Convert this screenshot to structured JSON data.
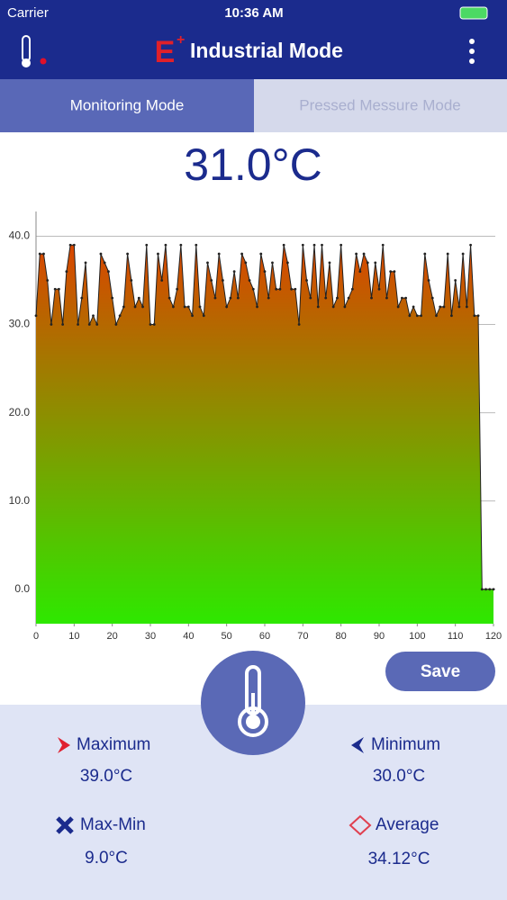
{
  "status_bar": {
    "carrier": "Carrier",
    "time": "10:36 AM"
  },
  "header": {
    "title": "Industrial Mode"
  },
  "tabs": [
    "Monitoring Mode",
    "Pressed Messure Mode"
  ],
  "reading": "31.0°C",
  "chart_data": {
    "type": "area",
    "x": [
      0,
      1,
      2,
      3,
      4,
      5,
      6,
      7,
      8,
      9,
      10,
      11,
      12,
      13,
      14,
      15,
      16,
      17,
      18,
      19,
      20,
      21,
      22,
      23,
      24,
      25,
      26,
      27,
      28,
      29,
      30,
      31,
      32,
      33,
      34,
      35,
      36,
      37,
      38,
      39,
      40,
      41,
      42,
      43,
      44,
      45,
      46,
      47,
      48,
      49,
      50,
      51,
      52,
      53,
      54,
      55,
      56,
      57,
      58,
      59,
      60,
      61,
      62,
      63,
      64,
      65,
      66,
      67,
      68,
      69,
      70,
      71,
      72,
      73,
      74,
      75,
      76,
      77,
      78,
      79,
      80,
      81,
      82,
      83,
      84,
      85,
      86,
      87,
      88,
      89,
      90,
      91,
      92,
      93,
      94,
      95,
      96,
      97,
      98,
      99,
      100,
      101,
      102,
      103,
      104,
      105,
      106,
      107,
      108,
      109,
      110,
      111,
      112,
      113,
      114,
      115,
      116,
      117,
      118,
      119,
      120
    ],
    "values": [
      31,
      38,
      38,
      35,
      30,
      34,
      34,
      30,
      36,
      39,
      39,
      30,
      33,
      37,
      30,
      31,
      30,
      38,
      37,
      36,
      33,
      30,
      31,
      32,
      38,
      35,
      32,
      33,
      32,
      39,
      30,
      30,
      38,
      35,
      39,
      33,
      32,
      34,
      39,
      32,
      32,
      31,
      39,
      32,
      31,
      37,
      35,
      33,
      38,
      35,
      32,
      33,
      36,
      33,
      38,
      37,
      35,
      34,
      32,
      38,
      36,
      33,
      37,
      34,
      34,
      39,
      37,
      34,
      34,
      30,
      39,
      35,
      33,
      39,
      32,
      39,
      33,
      37,
      32,
      33,
      39,
      32,
      33,
      34,
      38,
      36,
      38,
      37,
      33,
      37,
      34,
      39,
      33,
      36,
      36,
      32,
      33,
      33,
      31,
      32,
      31,
      31,
      38,
      35,
      33,
      31,
      32,
      32,
      38,
      31,
      35,
      32,
      38,
      32,
      39,
      31,
      31,
      0,
      0,
      0,
      0
    ],
    "xlim": [
      0,
      120
    ],
    "ylim": [
      -3.9,
      42.8
    ],
    "xticks": [
      0,
      10,
      20,
      30,
      40,
      50,
      60,
      70,
      80,
      90,
      100,
      110,
      120
    ],
    "yticks": [
      {
        "value": 0,
        "label": "0.0"
      },
      {
        "value": 10,
        "label": "10.0"
      },
      {
        "value": 20,
        "label": "20.0"
      },
      {
        "value": 30,
        "label": "30.0"
      },
      {
        "value": 40,
        "label": "40.0"
      }
    ],
    "grid": true,
    "gradient": [
      "#d94600",
      "#2ee800"
    ],
    "line_color": "#222222"
  },
  "save": "Save",
  "stats": [
    {
      "label": "Maximum",
      "value": "39.0°C"
    },
    {
      "label": "Minimum",
      "value": "30.0°C"
    },
    {
      "label": "Max-Min",
      "value": "9.0°C"
    },
    {
      "label": "Average",
      "value": "34.12°C"
    }
  ]
}
